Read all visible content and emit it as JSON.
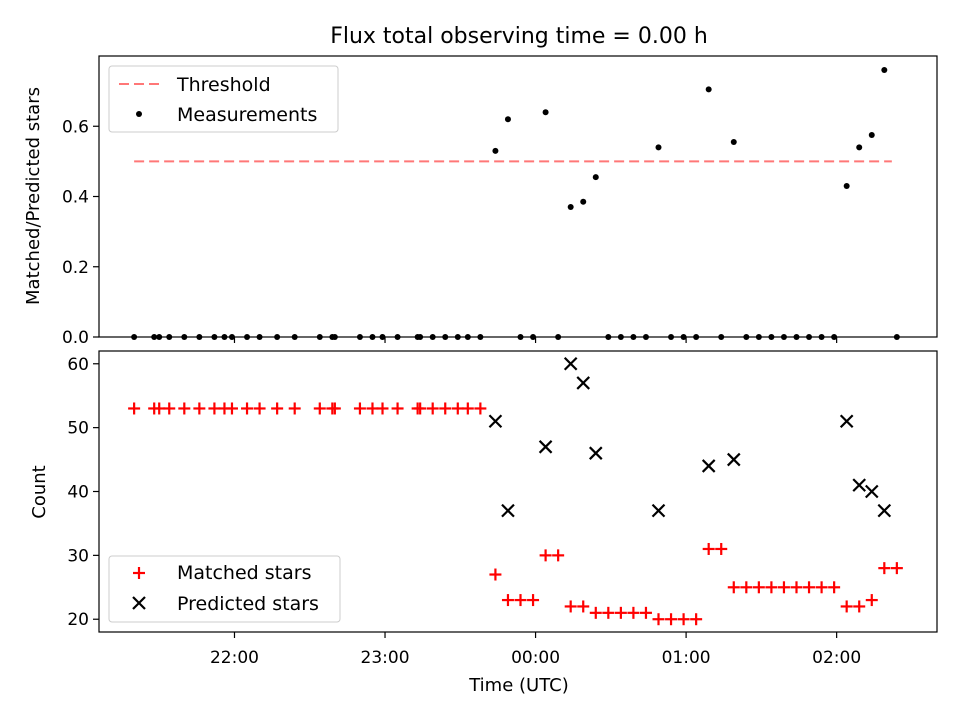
{
  "chart_data": [
    {
      "type": "scatter",
      "title": "Flux total observing time = 0.00 h",
      "ylabel": "Matched/Predicted stars",
      "xlabel": "",
      "ylim": [
        0,
        0.8
      ],
      "yticks": [
        0.0,
        0.2,
        0.4,
        0.6
      ],
      "ytick_labels": [
        "0.0",
        "0.2",
        "0.4",
        "0.6"
      ],
      "threshold": {
        "name": "Threshold",
        "value": 0.5,
        "x": [
          "21:20",
          "02:22"
        ],
        "color": "#ff7777"
      },
      "series": [
        {
          "name": "Measurements",
          "color": "#000000",
          "points": [
            [
              "21:20",
              0
            ],
            [
              "21:28",
              0
            ],
            [
              "21:30",
              0
            ],
            [
              "21:34",
              0
            ],
            [
              "21:40",
              0
            ],
            [
              "21:46",
              0
            ],
            [
              "21:52",
              0
            ],
            [
              "21:56",
              0
            ],
            [
              "21:59",
              0
            ],
            [
              "22:05",
              0
            ],
            [
              "22:10",
              0
            ],
            [
              "22:17",
              0
            ],
            [
              "22:24",
              0
            ],
            [
              "22:34",
              0
            ],
            [
              "22:39",
              0
            ],
            [
              "22:40",
              0
            ],
            [
              "22:50",
              0
            ],
            [
              "22:55",
              0
            ],
            [
              "22:59",
              0
            ],
            [
              "23:05",
              0
            ],
            [
              "23:13",
              0
            ],
            [
              "23:14",
              0
            ],
            [
              "23:19",
              0
            ],
            [
              "23:24",
              0
            ],
            [
              "23:29",
              0
            ],
            [
              "23:33",
              0
            ],
            [
              "23:38",
              0
            ],
            [
              "23:44",
              0.53
            ],
            [
              "23:49",
              0.62
            ],
            [
              "23:54",
              0
            ],
            [
              "23:59",
              0
            ],
            [
              "00:04",
              0.64
            ],
            [
              "00:09",
              0
            ],
            [
              "00:14",
              0.37
            ],
            [
              "00:19",
              0.385
            ],
            [
              "00:24",
              0.455
            ],
            [
              "00:29",
              0
            ],
            [
              "00:34",
              0
            ],
            [
              "00:39",
              0
            ],
            [
              "00:44",
              0
            ],
            [
              "00:49",
              0.54
            ],
            [
              "00:54",
              0
            ],
            [
              "00:59",
              0
            ],
            [
              "01:04",
              0
            ],
            [
              "01:09",
              0.705
            ],
            [
              "01:14",
              0
            ],
            [
              "01:19",
              0.555
            ],
            [
              "01:24",
              0
            ],
            [
              "01:29",
              0
            ],
            [
              "01:34",
              0
            ],
            [
              "01:39",
              0
            ],
            [
              "01:44",
              0
            ],
            [
              "01:49",
              0
            ],
            [
              "01:54",
              0
            ],
            [
              "01:59",
              0
            ],
            [
              "02:04",
              0.43
            ],
            [
              "02:09",
              0.54
            ],
            [
              "02:14",
              0.575
            ],
            [
              "02:19",
              0.76
            ],
            [
              "02:24",
              0
            ]
          ]
        }
      ],
      "legend": {
        "position": "top-left",
        "entries": [
          "Threshold",
          "Measurements"
        ]
      }
    },
    {
      "type": "scatter",
      "title": "",
      "ylabel": "Count",
      "xlabel": "Time (UTC)",
      "ylim": [
        18,
        62
      ],
      "yticks": [
        20,
        30,
        40,
        50,
        60
      ],
      "ytick_labels": [
        "20",
        "30",
        "40",
        "50",
        "60"
      ],
      "xlim": [
        "21:06",
        "02:40"
      ],
      "xticks": [
        "22:00",
        "23:00",
        "00:00",
        "01:00",
        "02:00"
      ],
      "xtick_labels": [
        "22:00",
        "23:00",
        "00:00",
        "01:00",
        "02:00"
      ],
      "series": [
        {
          "name": "Matched stars",
          "marker": "+",
          "color": "#ff0000",
          "points": [
            [
              "21:20",
              53
            ],
            [
              "21:28",
              53
            ],
            [
              "21:30",
              53
            ],
            [
              "21:34",
              53
            ],
            [
              "21:40",
              53
            ],
            [
              "21:46",
              53
            ],
            [
              "21:52",
              53
            ],
            [
              "21:56",
              53
            ],
            [
              "21:59",
              53
            ],
            [
              "22:05",
              53
            ],
            [
              "22:10",
              53
            ],
            [
              "22:17",
              53
            ],
            [
              "22:24",
              53
            ],
            [
              "22:34",
              53
            ],
            [
              "22:39",
              53
            ],
            [
              "22:40",
              53
            ],
            [
              "22:50",
              53
            ],
            [
              "22:55",
              53
            ],
            [
              "22:59",
              53
            ],
            [
              "23:05",
              53
            ],
            [
              "23:13",
              53
            ],
            [
              "23:14",
              53
            ],
            [
              "23:19",
              53
            ],
            [
              "23:24",
              53
            ],
            [
              "23:29",
              53
            ],
            [
              "23:33",
              53
            ],
            [
              "23:38",
              53
            ],
            [
              "23:44",
              27
            ],
            [
              "23:49",
              23
            ],
            [
              "23:54",
              23
            ],
            [
              "23:59",
              23
            ],
            [
              "00:04",
              30
            ],
            [
              "00:09",
              30
            ],
            [
              "00:14",
              22
            ],
            [
              "00:19",
              22
            ],
            [
              "00:24",
              21
            ],
            [
              "00:29",
              21
            ],
            [
              "00:34",
              21
            ],
            [
              "00:39",
              21
            ],
            [
              "00:44",
              21
            ],
            [
              "00:49",
              20
            ],
            [
              "00:54",
              20
            ],
            [
              "00:59",
              20
            ],
            [
              "01:04",
              20
            ],
            [
              "01:09",
              31
            ],
            [
              "01:14",
              31
            ],
            [
              "01:19",
              25
            ],
            [
              "01:24",
              25
            ],
            [
              "01:29",
              25
            ],
            [
              "01:34",
              25
            ],
            [
              "01:39",
              25
            ],
            [
              "01:44",
              25
            ],
            [
              "01:49",
              25
            ],
            [
              "01:54",
              25
            ],
            [
              "01:59",
              25
            ],
            [
              "02:04",
              22
            ],
            [
              "02:09",
              22
            ],
            [
              "02:14",
              23
            ],
            [
              "02:19",
              28
            ],
            [
              "02:24",
              28
            ]
          ]
        },
        {
          "name": "Predicted stars",
          "marker": "x",
          "color": "#000000",
          "points": [
            [
              "23:44",
              51
            ],
            [
              "23:49",
              37
            ],
            [
              "00:04",
              47
            ],
            [
              "00:14",
              60
            ],
            [
              "00:19",
              57
            ],
            [
              "00:24",
              46
            ],
            [
              "00:49",
              37
            ],
            [
              "01:09",
              44
            ],
            [
              "01:19",
              45
            ],
            [
              "02:04",
              51
            ],
            [
              "02:09",
              41
            ],
            [
              "02:14",
              40
            ],
            [
              "02:19",
              37
            ]
          ]
        }
      ],
      "legend": {
        "position": "bottom-left",
        "entries": [
          "Matched stars",
          "Predicted stars"
        ]
      }
    }
  ]
}
